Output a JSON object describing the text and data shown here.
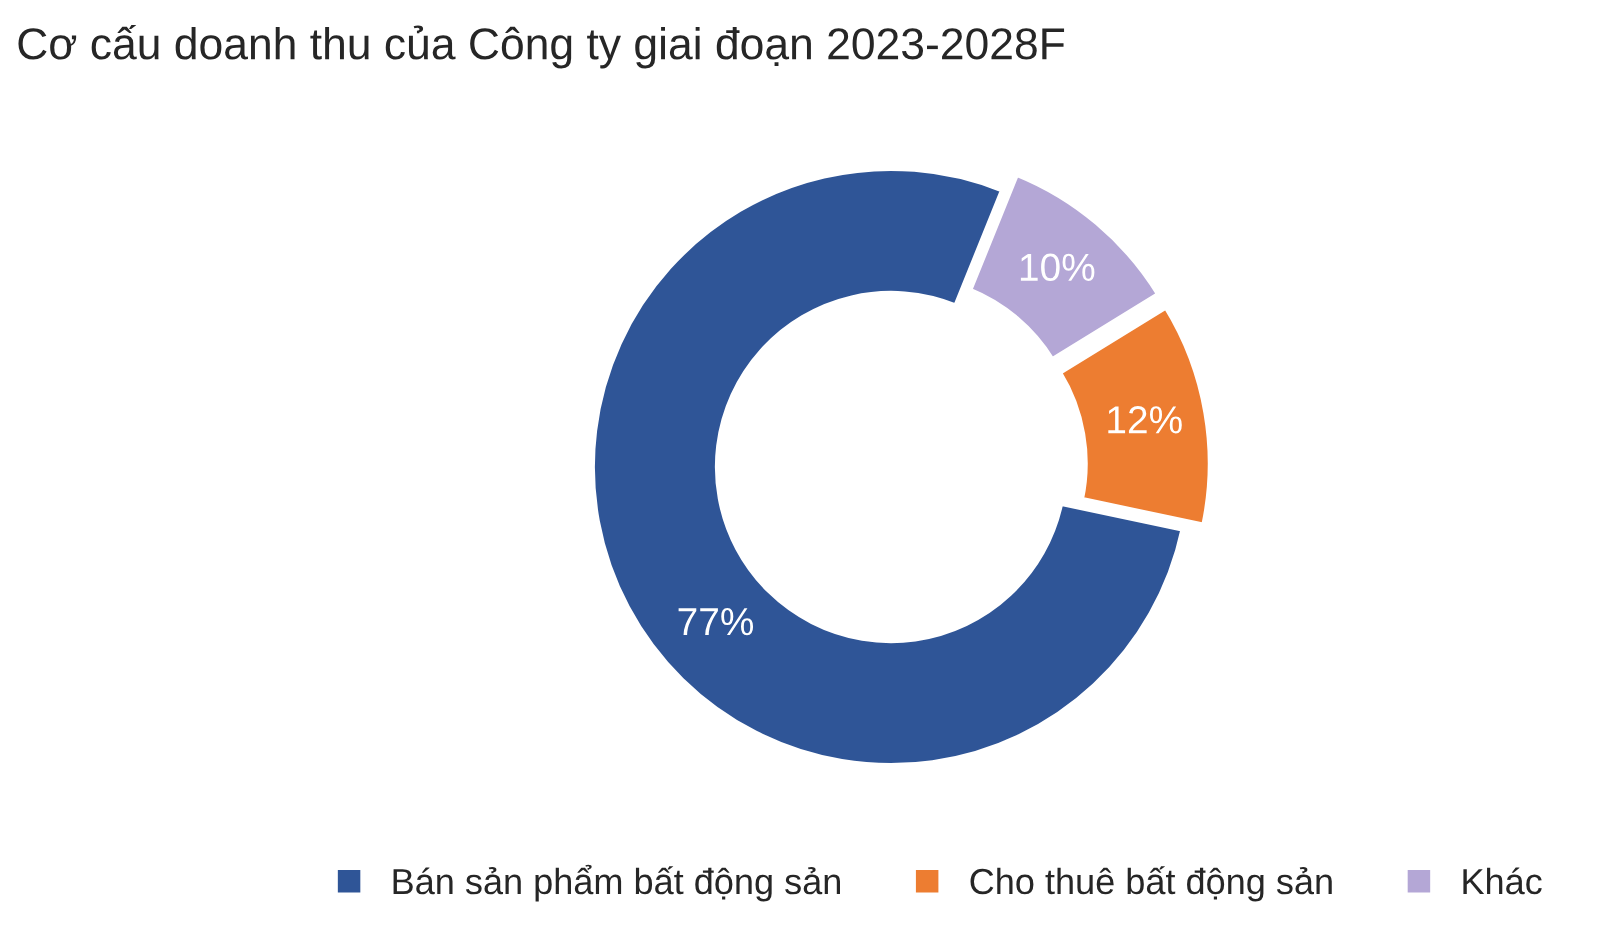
{
  "chart_data": {
    "type": "donut",
    "title": "Cơ cấu doanh thu của Công ty giai đoạn 2023-2028F",
    "categories": [
      "Bán sản phẩm bất động sản",
      "Cho thuê bất động sản",
      "Khác"
    ],
    "values": [
      77,
      12,
      10
    ],
    "colors": [
      "#2f5597",
      "#ed7d31",
      "#b4a7d6"
    ],
    "value_labels": [
      "77%",
      "12%",
      "10%"
    ],
    "legend": "bottom"
  }
}
